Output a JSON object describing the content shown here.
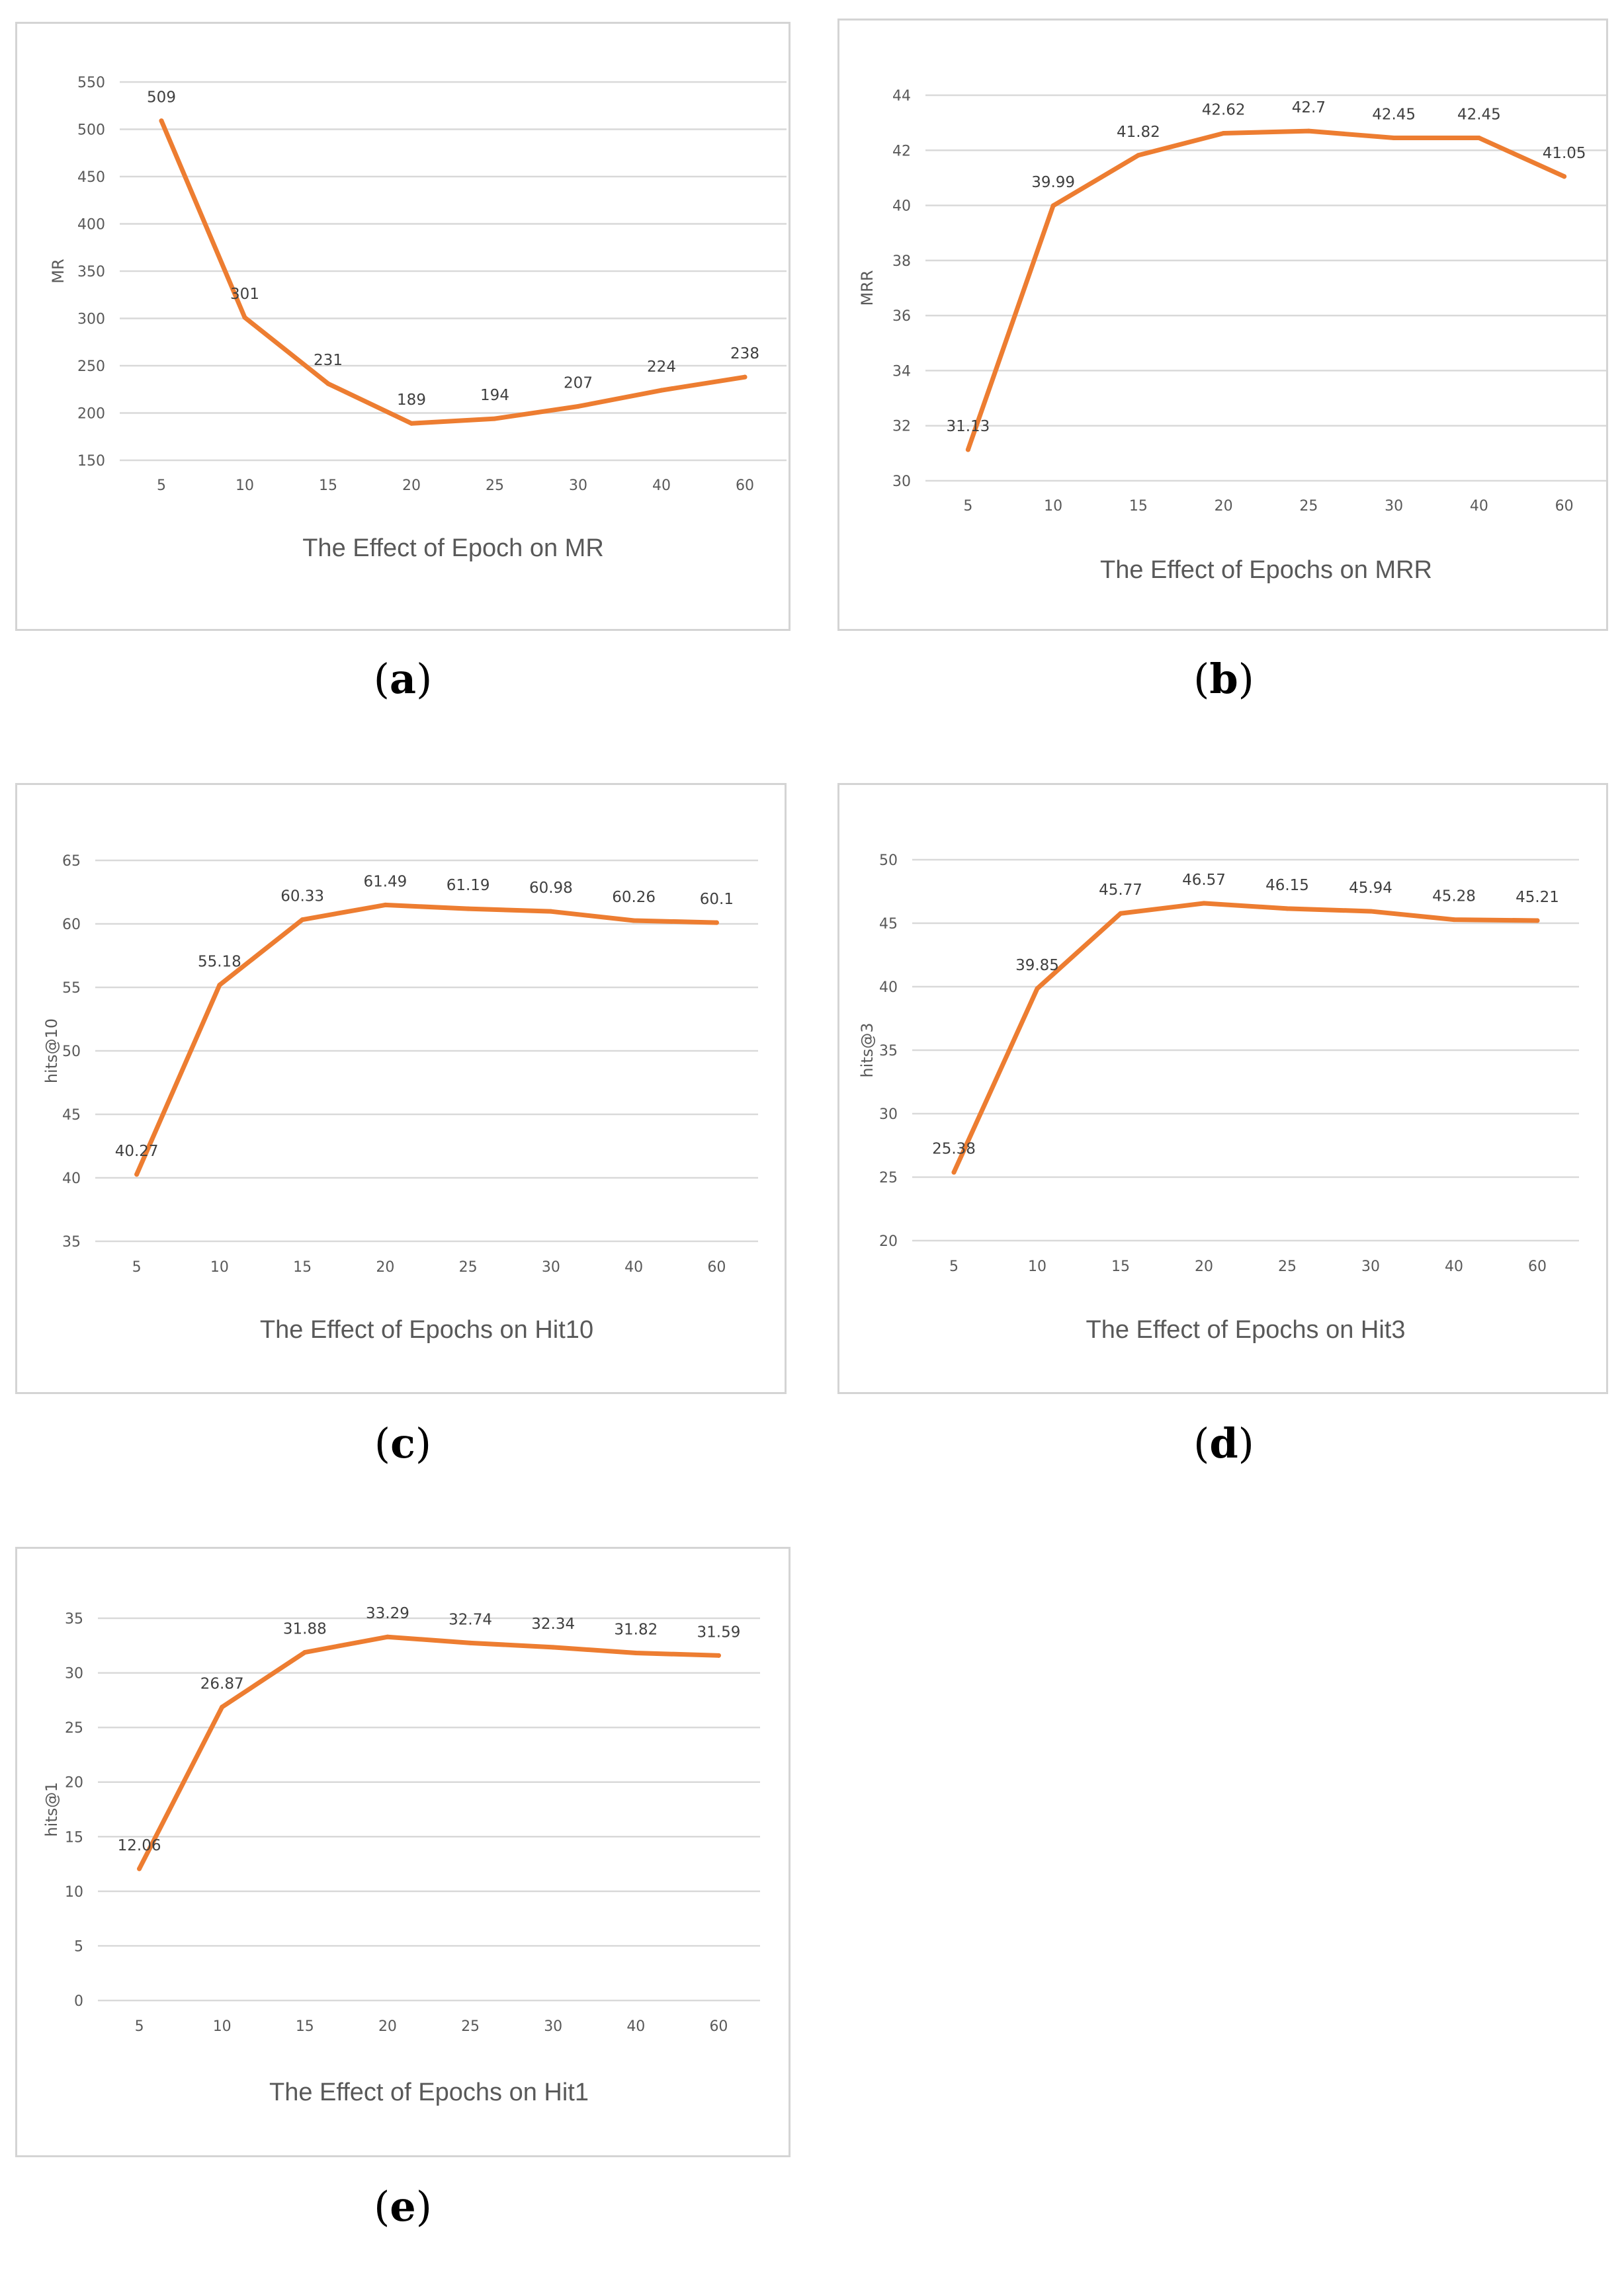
{
  "line_color": "#ed7d31",
  "grid_color": "#d9d9d9",
  "chart_data": [
    {
      "id": "a",
      "caption": "a",
      "type": "line",
      "title": "The Effect of Epoch on MR",
      "ylabel": "MR",
      "xlabel": "",
      "categories": [
        "5",
        "10",
        "15",
        "20",
        "25",
        "30",
        "40",
        "60"
      ],
      "values": [
        509,
        301,
        231,
        189,
        194,
        207,
        224,
        238
      ],
      "value_labels": [
        "509",
        "301",
        "231",
        "189",
        "194",
        "207",
        "224",
        "238"
      ],
      "yticks": [
        150,
        200,
        250,
        300,
        350,
        400,
        450,
        500,
        550
      ],
      "ylim": [
        150,
        550
      ],
      "grid": true
    },
    {
      "id": "b",
      "caption": "b",
      "type": "line",
      "title": "The Effect of Epochs on MRR",
      "ylabel": "MRR",
      "xlabel": "",
      "categories": [
        "5",
        "10",
        "15",
        "20",
        "25",
        "30",
        "40",
        "60"
      ],
      "values": [
        31.13,
        39.99,
        41.82,
        42.62,
        42.7,
        42.45,
        42.45,
        41.05
      ],
      "value_labels": [
        "31.13",
        "39.99",
        "41.82",
        "42.62",
        "42.7",
        "42.45",
        "42.45",
        "41.05"
      ],
      "yticks": [
        30,
        32,
        34,
        36,
        38,
        40,
        42,
        44
      ],
      "ylim": [
        30,
        44
      ],
      "grid": true
    },
    {
      "id": "c",
      "caption": "c",
      "type": "line",
      "title": "The Effect of Epochs on Hit10",
      "ylabel": "hits@10",
      "xlabel": "",
      "categories": [
        "5",
        "10",
        "15",
        "20",
        "25",
        "30",
        "40",
        "60"
      ],
      "values": [
        40.27,
        55.18,
        60.33,
        61.49,
        61.19,
        60.98,
        60.26,
        60.1
      ],
      "value_labels": [
        "40.27",
        "55.18",
        "60.33",
        "61.49",
        "61.19",
        "60.98",
        "60.26",
        "60.1"
      ],
      "yticks": [
        35,
        40,
        45,
        50,
        55,
        60,
        65
      ],
      "ylim": [
        35,
        65
      ],
      "grid": true
    },
    {
      "id": "d",
      "caption": "d",
      "type": "line",
      "title": "The Effect of Epochs on Hit3",
      "ylabel": "hits@3",
      "xlabel": "",
      "categories": [
        "5",
        "10",
        "15",
        "20",
        "25",
        "30",
        "40",
        "60"
      ],
      "values": [
        25.38,
        39.85,
        45.77,
        46.57,
        46.15,
        45.94,
        45.28,
        45.21
      ],
      "value_labels": [
        "25.38",
        "39.85",
        "45.77",
        "46.57",
        "46.15",
        "45.94",
        "45.28",
        "45.21"
      ],
      "yticks": [
        20,
        25,
        30,
        35,
        40,
        45,
        50
      ],
      "ylim": [
        20,
        50
      ],
      "grid": true
    },
    {
      "id": "e",
      "caption": "e",
      "type": "line",
      "title": "The Effect of Epochs on Hit1",
      "ylabel": "hits@1",
      "xlabel": "",
      "categories": [
        "5",
        "10",
        "15",
        "20",
        "25",
        "30",
        "40",
        "60"
      ],
      "values": [
        12.06,
        26.87,
        31.88,
        33.29,
        32.74,
        32.34,
        31.82,
        31.59
      ],
      "value_labels": [
        "12.06",
        "26.87",
        "31.88",
        "33.29",
        "32.74",
        "32.34",
        "31.82",
        "31.59"
      ],
      "yticks": [
        0,
        5,
        10,
        15,
        20,
        25,
        30,
        35
      ],
      "ylim": [
        0,
        35
      ],
      "grid": true
    }
  ]
}
